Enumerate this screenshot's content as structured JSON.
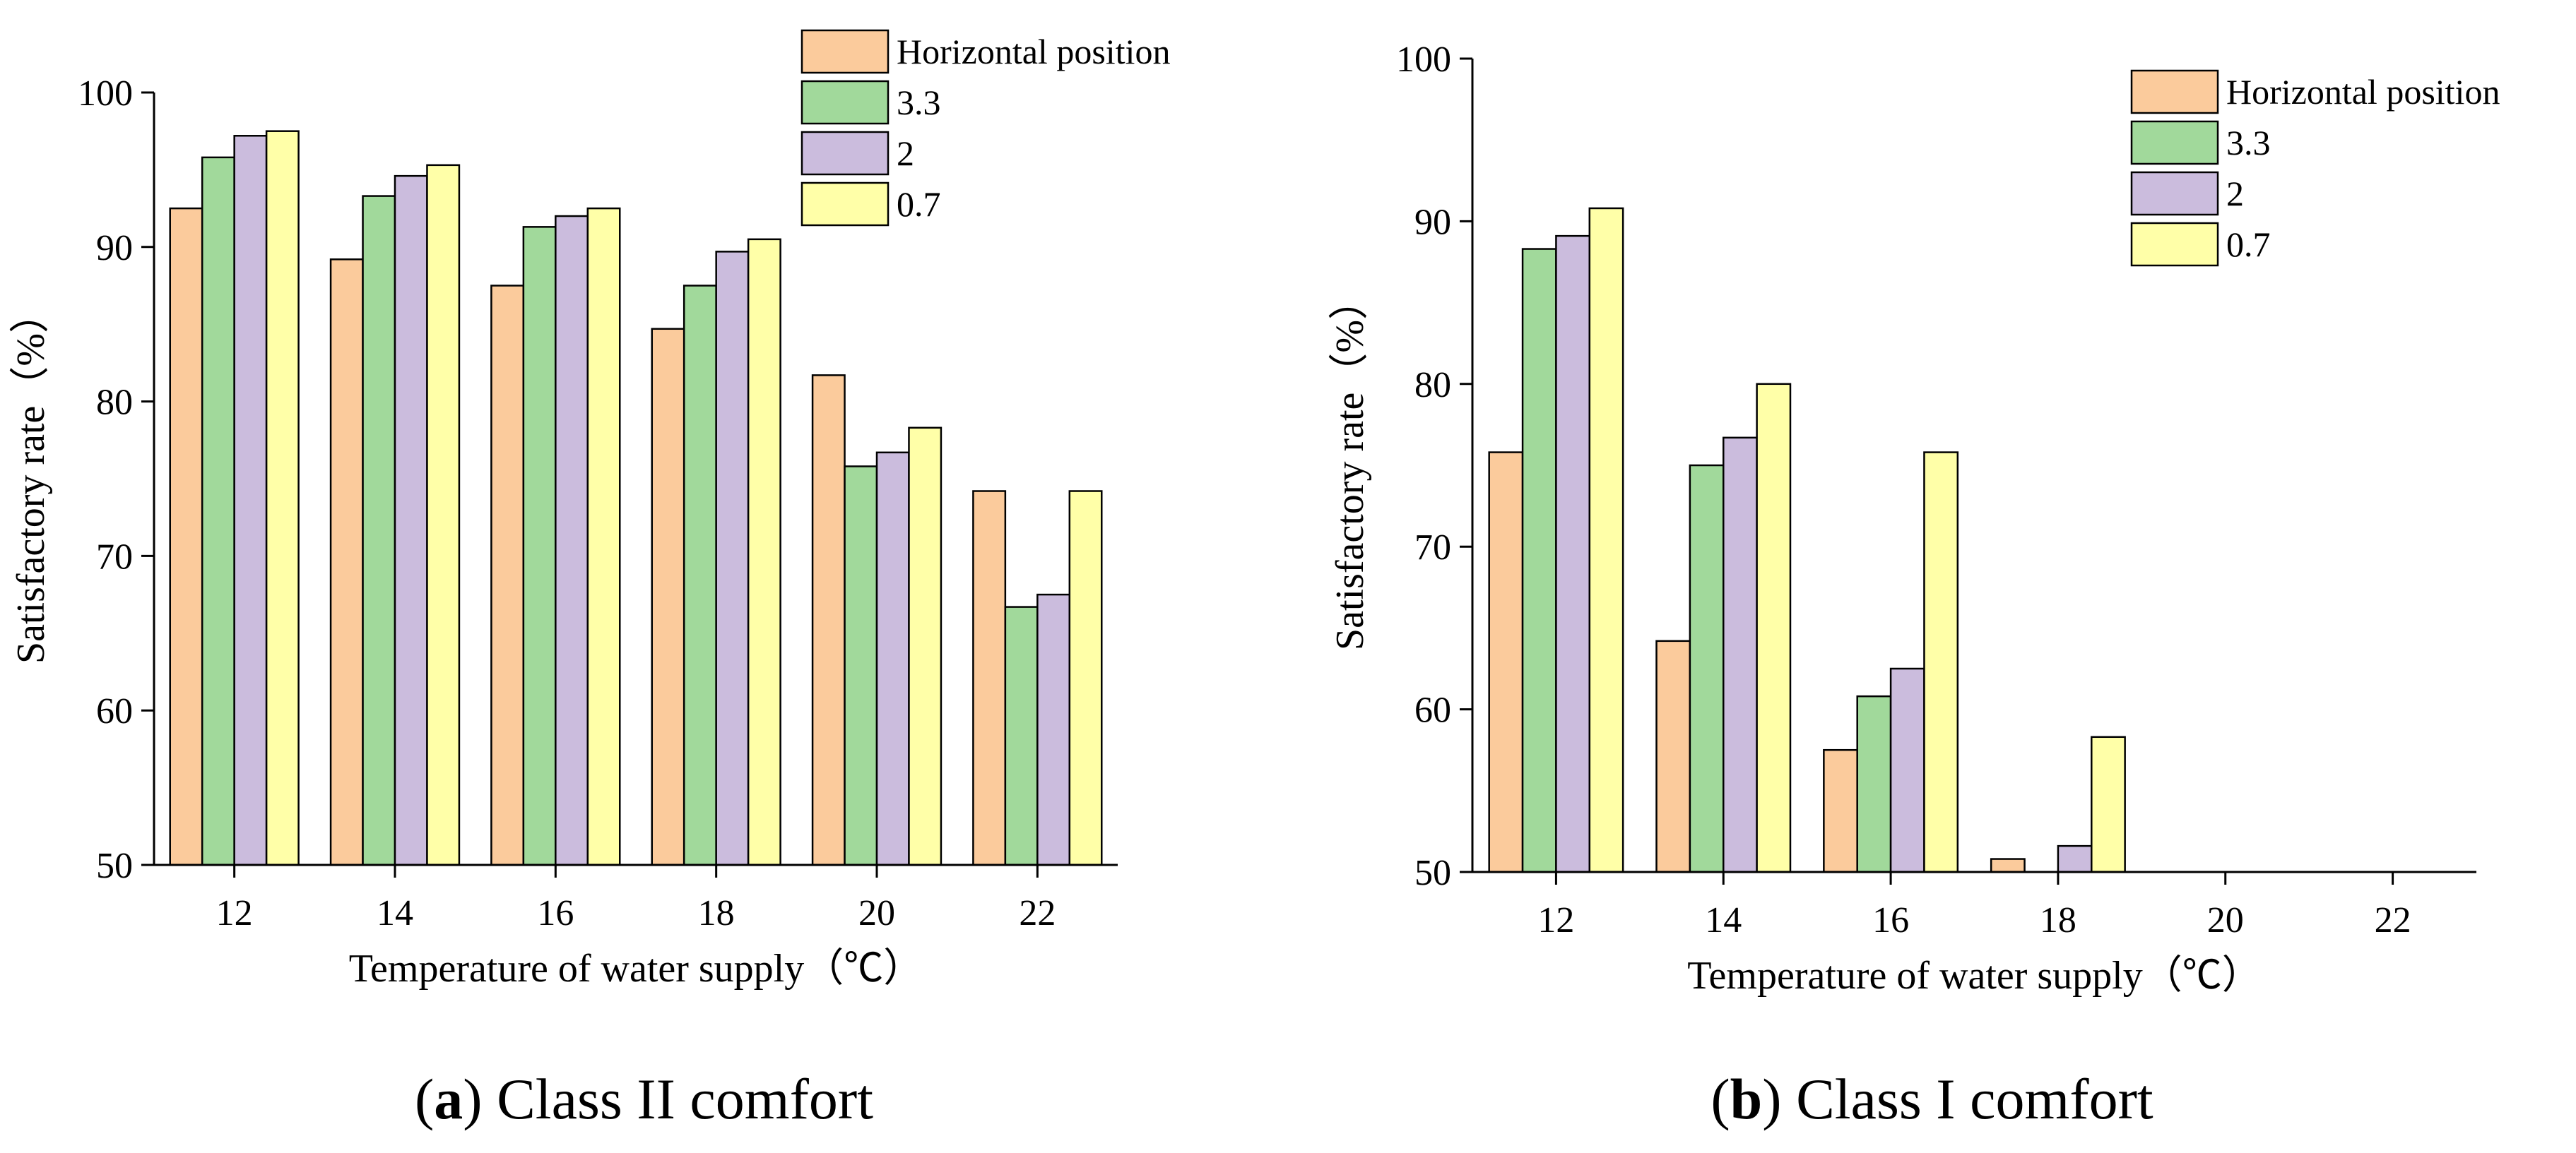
{
  "chart_data": [
    {
      "type": "bar",
      "panel_letter": "a",
      "caption": "Class II comfort",
      "xlabel": "Temperature of water supply（℃）",
      "ylabel": "Satisfactory rate（%）",
      "ylim": [
        50,
        100
      ],
      "yticks": [
        50,
        60,
        70,
        80,
        90,
        100
      ],
      "categories": [
        "12",
        "14",
        "16",
        "18",
        "20",
        "22"
      ],
      "legend_position": "top-right",
      "series": [
        {
          "name": "Horizontal position",
          "color": "#FBCB9C",
          "values": [
            92.5,
            89.2,
            87.5,
            84.7,
            81.7,
            74.2
          ]
        },
        {
          "name": "3.3",
          "color": "#A1D99B",
          "values": [
            95.8,
            93.3,
            91.3,
            87.5,
            75.8,
            66.7
          ]
        },
        {
          "name": "2",
          "color": "#CBBCDD",
          "values": [
            97.2,
            94.6,
            92.0,
            89.7,
            76.7,
            67.5
          ]
        },
        {
          "name": "0.7",
          "color": "#FFFFA8",
          "values": [
            97.5,
            95.3,
            92.5,
            90.5,
            78.3,
            74.2
          ]
        }
      ]
    },
    {
      "type": "bar",
      "panel_letter": "b",
      "caption": "Class I comfort",
      "xlabel": "Temperature of water supply（℃）",
      "ylabel": "Satisfactory rate（%）",
      "ylim": [
        50,
        100
      ],
      "yticks": [
        50,
        60,
        70,
        80,
        90,
        100
      ],
      "categories": [
        "12",
        "14",
        "16",
        "18",
        "20",
        "22"
      ],
      "legend_position": "top-right",
      "series": [
        {
          "name": "Horizontal position",
          "color": "#FBCB9C",
          "values": [
            75.8,
            64.2,
            57.5,
            50.8,
            50.0,
            50.0
          ]
        },
        {
          "name": "3.3",
          "color": "#A1D99B",
          "values": [
            88.3,
            75.0,
            60.8,
            50.0,
            50.0,
            50.0
          ]
        },
        {
          "name": "2",
          "color": "#CBBCDD",
          "values": [
            89.1,
            76.7,
            62.5,
            51.6,
            50.0,
            50.0
          ]
        },
        {
          "name": "0.7",
          "color": "#FFFFA8",
          "values": [
            90.8,
            80.0,
            75.8,
            58.3,
            50.0,
            50.0
          ]
        }
      ]
    }
  ]
}
